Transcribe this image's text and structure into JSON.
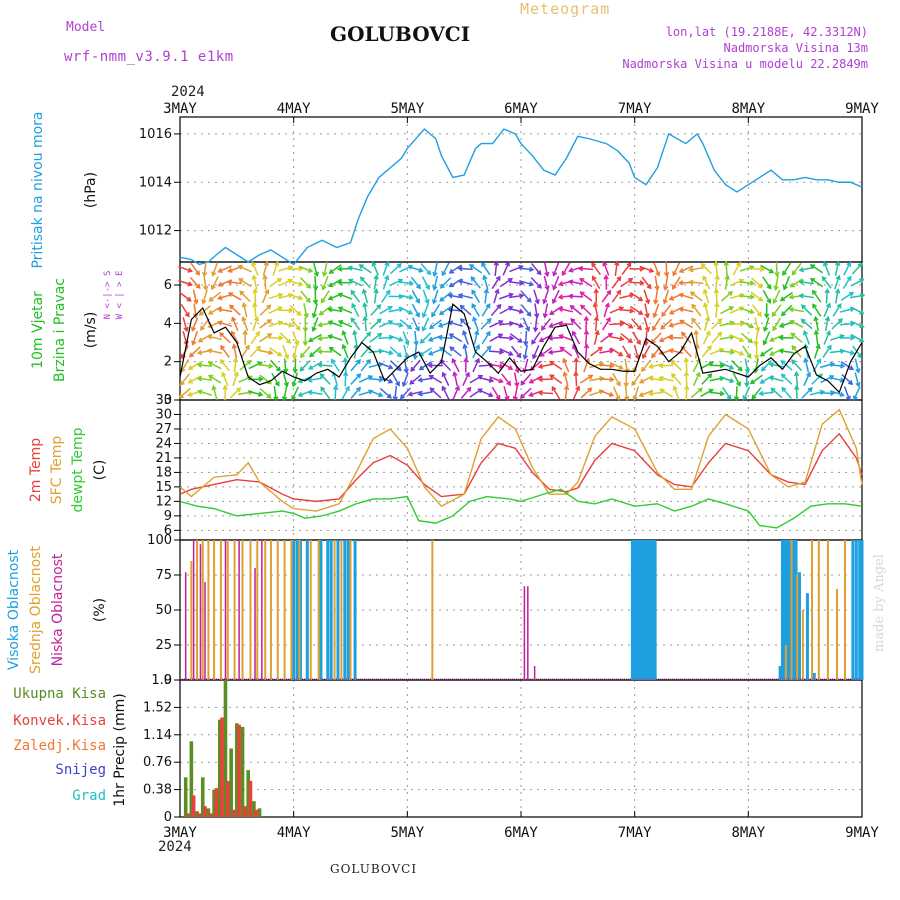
{
  "header": {
    "model_label": "Model",
    "model_value": "wrf-nmm_v3.9.1 e1km",
    "title": "GOLUBOVCI",
    "meteogram": "Meteogram",
    "lonlat": "lon,lat (19.2188E, 42.3312N)",
    "altitude": "Nadmorska Visina 13m",
    "model_altitude": "Nadmorska Visina u modelu 22.2849m",
    "year_top": "2024",
    "year_bottom": "2024",
    "footer": "GOLUBOVCI",
    "signature": "made by Angel"
  },
  "colors": {
    "pressure": "#1E9FE0",
    "temp2m": "#E8403A",
    "sfc": "#E0A030",
    "dew": "#2ECC2E",
    "wind_label": "#22C022",
    "high": "#1E9FE0",
    "mid": "#E0A030",
    "low": "#C0209A",
    "total_precip": "#5A8E22",
    "conv_precip": "#E8403A",
    "frz": "#F07830",
    "snow": "#4040D0",
    "grad": "#20C0C0",
    "compass": "#B040D0"
  },
  "chart_data": [
    {
      "type": "line",
      "ylabel": [
        "Pritisak na nivou mora",
        "(hPa)"
      ],
      "x_categories": [
        "3MAY",
        "4MAY",
        "5MAY",
        "6MAY",
        "7MAY",
        "8MAY",
        "9MAY"
      ],
      "yticks": [
        1012,
        1014,
        1016
      ],
      "ylim": [
        1010.7,
        1016.7
      ],
      "series": [
        {
          "x": [
            0,
            0.1,
            0.17,
            0.25,
            0.32,
            0.4,
            0.5,
            0.6,
            0.7,
            0.8,
            0.9,
            1.0,
            1.12,
            1.25,
            1.38,
            1.5,
            1.57,
            1.65,
            1.75,
            1.85,
            1.95,
            2.0,
            2.15,
            2.25,
            2.3,
            2.4,
            2.5,
            2.6,
            2.65,
            2.75,
            2.85,
            2.95,
            3.0,
            3.1,
            3.2,
            3.3,
            3.4,
            3.5,
            3.6,
            3.75,
            3.85,
            3.95,
            4.0,
            4.1,
            4.2,
            4.3,
            4.45,
            4.55,
            4.6,
            4.7,
            4.8,
            4.9,
            5.0,
            5.1,
            5.2,
            5.3,
            5.4,
            5.5,
            5.6,
            5.7,
            5.8,
            5.9,
            6.0
          ],
          "values": [
            1010.9,
            1010.8,
            1010.6,
            1010.7,
            1011.0,
            1011.3,
            1011.0,
            1010.7,
            1011.0,
            1011.2,
            1010.9,
            1010.6,
            1011.3,
            1011.6,
            1011.3,
            1011.5,
            1012.5,
            1013.4,
            1014.2,
            1014.6,
            1015.0,
            1015.4,
            1016.2,
            1015.8,
            1015.1,
            1014.2,
            1014.3,
            1015.4,
            1015.6,
            1015.6,
            1016.2,
            1016.0,
            1015.6,
            1015.1,
            1014.5,
            1014.3,
            1015.0,
            1015.9,
            1015.8,
            1015.6,
            1015.3,
            1014.8,
            1014.2,
            1013.9,
            1014.6,
            1016.0,
            1015.6,
            1016.0,
            1015.6,
            1014.5,
            1013.9,
            1013.6,
            1013.9,
            1014.2,
            1014.5,
            1014.1,
            1014.1,
            1014.2,
            1014.1,
            1014.1,
            1014.0,
            1014.0,
            1013.8
          ]
        }
      ]
    },
    {
      "type": "line",
      "ylabel": [
        "10m Vjetar",
        "Brzina i Pravac",
        "(m/s)"
      ],
      "compass": [
        "N",
        "S",
        "W",
        "E",
        "<",
        "-",
        "|",
        "-",
        ">",
        "<",
        ">"
      ],
      "yticks": [
        0,
        2,
        4,
        6
      ],
      "ylim": [
        0,
        7.2
      ],
      "series": [
        {
          "name": "wind_speed",
          "x": [
            0,
            0.1,
            0.2,
            0.3,
            0.4,
            0.5,
            0.6,
            0.7,
            0.8,
            0.9,
            1.0,
            1.1,
            1.2,
            1.3,
            1.4,
            1.5,
            1.6,
            1.7,
            1.8,
            1.9,
            2.0,
            2.1,
            2.2,
            2.3,
            2.4,
            2.5,
            2.6,
            2.7,
            2.8,
            2.9,
            3.0,
            3.1,
            3.2,
            3.3,
            3.4,
            3.5,
            3.6,
            3.7,
            3.8,
            3.9,
            4.0,
            4.1,
            4.2,
            4.3,
            4.4,
            4.5,
            4.6,
            4.7,
            4.8,
            4.9,
            5.0,
            5.1,
            5.2,
            5.3,
            5.4,
            5.5,
            5.6,
            5.7,
            5.8,
            5.9,
            6.0
          ],
          "values": [
            1.2,
            4.2,
            4.8,
            3.5,
            3.8,
            3.0,
            1.2,
            0.8,
            1.0,
            1.5,
            1.2,
            1.0,
            1.4,
            1.6,
            1.2,
            2.2,
            3.0,
            2.5,
            1.0,
            1.6,
            2.2,
            2.5,
            1.4,
            2.0,
            5.0,
            4.5,
            2.5,
            2.0,
            1.4,
            2.2,
            1.5,
            1.6,
            2.8,
            3.8,
            3.9,
            2.5,
            1.9,
            1.6,
            1.6,
            1.5,
            1.5,
            3.2,
            2.8,
            2.0,
            2.5,
            3.5,
            1.4,
            1.5,
            1.6,
            1.4,
            1.2,
            1.8,
            2.2,
            1.6,
            2.4,
            2.8,
            1.3,
            1.0,
            0.4,
            2.0,
            3.0
          ]
        }
      ]
    },
    {
      "type": "line",
      "ylabel": [
        "2m Temp",
        "SFC Temp",
        "dewpt Temp",
        "(C)"
      ],
      "yticks": [
        6,
        9,
        12,
        15,
        18,
        21,
        24,
        27,
        30,
        33
      ],
      "ylim": [
        4,
        33
      ],
      "series": [
        {
          "name": "2m Temp",
          "x": [
            0,
            0.1,
            0.3,
            0.5,
            0.7,
            0.9,
            1.0,
            1.2,
            1.4,
            1.55,
            1.7,
            1.85,
            2.0,
            2.15,
            2.3,
            2.5,
            2.65,
            2.8,
            2.95,
            3.1,
            3.25,
            3.4,
            3.5,
            3.65,
            3.8,
            4.0,
            4.2,
            4.35,
            4.5,
            4.65,
            4.8,
            5.0,
            5.2,
            5.35,
            5.5,
            5.65,
            5.8,
            5.95,
            6.0
          ],
          "values": [
            13.5,
            14.5,
            15.5,
            16.5,
            16.0,
            13.5,
            12.5,
            12.0,
            12.5,
            16.5,
            20.0,
            21.5,
            19.5,
            15.5,
            13.0,
            13.5,
            20.0,
            24.0,
            23.0,
            18.0,
            14.5,
            14.0,
            14.8,
            20.5,
            24.0,
            22.5,
            17.5,
            15.5,
            15.0,
            20.0,
            24.0,
            22.5,
            17.5,
            16.0,
            15.5,
            22.5,
            26.0,
            21.0,
            17.5
          ]
        },
        {
          "name": "SFC Temp",
          "x": [
            0,
            0.1,
            0.3,
            0.5,
            0.6,
            0.7,
            0.9,
            1.0,
            1.2,
            1.4,
            1.55,
            1.7,
            1.85,
            2.0,
            2.15,
            2.3,
            2.5,
            2.65,
            2.8,
            2.95,
            3.1,
            3.25,
            3.4,
            3.5,
            3.65,
            3.8,
            4.0,
            4.2,
            4.35,
            4.5,
            4.65,
            4.8,
            5.0,
            5.2,
            5.35,
            5.5,
            5.65,
            5.8,
            5.95,
            6.0
          ],
          "values": [
            15.0,
            13.0,
            17.0,
            17.5,
            20.0,
            16.0,
            12.0,
            10.5,
            10.0,
            11.5,
            18.0,
            25.0,
            27.0,
            23.0,
            15.0,
            11.0,
            13.5,
            25.0,
            29.5,
            27.0,
            19.0,
            13.5,
            13.5,
            16.0,
            25.5,
            29.5,
            27.0,
            18.0,
            14.5,
            14.5,
            25.5,
            30.0,
            27.0,
            17.5,
            15.0,
            16.0,
            28.0,
            31.0,
            23.0,
            15.5
          ]
        },
        {
          "name": "dewpt Temp",
          "x": [
            0,
            0.15,
            0.3,
            0.5,
            0.7,
            0.9,
            1.0,
            1.1,
            1.25,
            1.4,
            1.55,
            1.7,
            1.85,
            2.0,
            2.1,
            2.25,
            2.4,
            2.55,
            2.7,
            2.9,
            3.0,
            3.2,
            3.35,
            3.5,
            3.65,
            3.8,
            4.0,
            4.2,
            4.35,
            4.5,
            4.65,
            4.8,
            5.0,
            5.1,
            5.25,
            5.4,
            5.55,
            5.7,
            5.85,
            6.0
          ],
          "values": [
            12.0,
            11.0,
            10.5,
            9.0,
            9.5,
            10.0,
            9.5,
            8.5,
            9.0,
            10.0,
            11.5,
            12.5,
            12.5,
            13.0,
            8.0,
            7.5,
            9.0,
            12.0,
            13.0,
            12.5,
            12.0,
            13.5,
            14.5,
            12.0,
            11.5,
            12.5,
            11.0,
            11.5,
            10.0,
            11.0,
            12.5,
            11.5,
            10.0,
            7.0,
            6.5,
            8.5,
            11.0,
            11.5,
            11.5,
            11.0
          ]
        }
      ]
    },
    {
      "type": "bar",
      "ylabel": [
        "Visoka Oblacnost",
        "Srednja Oblacnost",
        "Niska Oblacnost",
        "(%)"
      ],
      "yticks": [
        0,
        25,
        50,
        75,
        100
      ],
      "ylim": [
        0,
        100
      ],
      "series": [
        {
          "name": "Visoka Oblacnost",
          "x": [
            1.0,
            1.03,
            1.06,
            1.12,
            1.24,
            1.3,
            1.33,
            1.39,
            1.45,
            1.48,
            1.54,
            3.98,
            4.0,
            4.02,
            4.04,
            4.06,
            4.08,
            4.1,
            4.12,
            4.14,
            4.16,
            4.18,
            5.28,
            5.3,
            5.32,
            5.34,
            5.36,
            5.38,
            5.4,
            5.42,
            5.45,
            5.52,
            5.58,
            5.64,
            5.92,
            5.95,
            5.98,
            6.0
          ],
          "values": [
            100,
            100,
            100,
            100,
            100,
            100,
            100,
            100,
            100,
            100,
            100,
            100,
            100,
            100,
            100,
            100,
            100,
            100,
            100,
            100,
            100,
            100,
            10,
            100,
            100,
            100,
            100,
            100,
            100,
            100,
            77,
            62,
            5,
            0,
            100,
            100,
            100,
            100
          ]
        },
        {
          "name": "Srednja Oblacnost",
          "x": [
            0.1,
            0.15,
            0.2,
            0.25,
            0.3,
            0.36,
            0.42,
            0.48,
            0.55,
            0.62,
            0.68,
            0.75,
            0.8,
            0.86,
            0.92,
            0.98,
            1.05,
            1.15,
            1.22,
            1.36,
            1.42,
            1.5,
            2.22,
            5.33,
            5.38,
            5.43,
            5.48,
            5.56,
            5.62,
            5.7,
            5.78,
            5.85
          ],
          "values": [
            85,
            100,
            100,
            100,
            100,
            100,
            100,
            100,
            100,
            100,
            100,
            100,
            100,
            100,
            100,
            100,
            100,
            100,
            100,
            100,
            100,
            100,
            100,
            25,
            100,
            75,
            50,
            100,
            100,
            100,
            65,
            100
          ]
        },
        {
          "name": "Niska Oblacnost",
          "x": [
            0.05,
            0.12,
            0.18,
            0.22,
            0.4,
            0.52,
            0.66,
            0.72,
            3.03,
            3.06,
            3.12
          ],
          "values": [
            77,
            100,
            97,
            70,
            100,
            100,
            80,
            100,
            67,
            67,
            10
          ]
        }
      ]
    },
    {
      "type": "bar",
      "ylabel": [
        "Ukupna Kisa",
        "Konvek.Kisa",
        "Zaledj.Kisa",
        "Snijeg",
        "Grad",
        "1hr Precip (mm)"
      ],
      "yticks": [
        0,
        0.38,
        0.76,
        1.14,
        1.52,
        1.9
      ],
      "ylim": [
        0,
        1.9
      ],
      "x_categories": [
        "3MAY",
        "4MAY",
        "5MAY",
        "6MAY",
        "7MAY",
        "8MAY",
        "9MAY"
      ],
      "series": [
        {
          "name": "Ukupna Kisa",
          "x": [
            0.05,
            0.1,
            0.15,
            0.2,
            0.25,
            0.3,
            0.35,
            0.4,
            0.45,
            0.5,
            0.55,
            0.6,
            0.65,
            0.7
          ],
          "values": [
            0.55,
            1.05,
            0.08,
            0.55,
            0.12,
            0.38,
            1.35,
            1.9,
            0.95,
            1.3,
            1.25,
            0.65,
            0.22,
            0.12
          ]
        },
        {
          "name": "Konvek.Kisa",
          "x": [
            0.07,
            0.12,
            0.17,
            0.22,
            0.27,
            0.32,
            0.37,
            0.42,
            0.47,
            0.52,
            0.57,
            0.62,
            0.67
          ],
          "values": [
            0.05,
            0.3,
            0.05,
            0.15,
            0.05,
            0.4,
            1.38,
            0.5,
            0.1,
            1.28,
            0.15,
            0.5,
            0.1
          ]
        }
      ]
    }
  ]
}
